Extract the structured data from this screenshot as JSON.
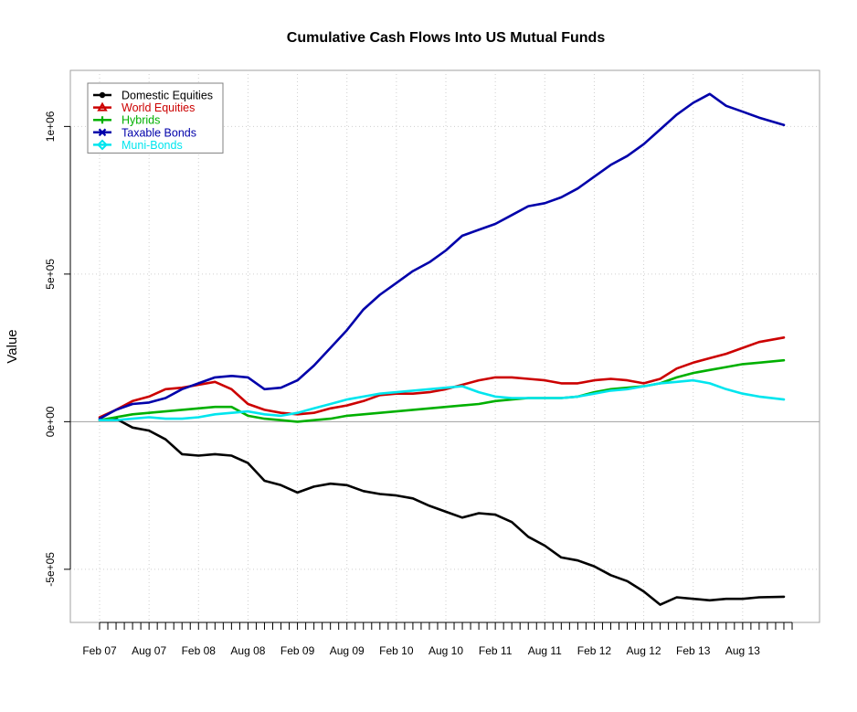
{
  "chart_data": {
    "type": "line",
    "title": "Cumulative Cash Flows Into US Mutual Funds",
    "xlabel": "",
    "ylabel": "Value",
    "x_range": [
      0,
      84
    ],
    "ylim": [
      -680000,
      1190000
    ],
    "grid": true,
    "legend_position": "top-left",
    "x_ticks": [
      {
        "label": "Feb 07",
        "x": 0
      },
      {
        "label": "Aug 07",
        "x": 6
      },
      {
        "label": "Feb 08",
        "x": 12
      },
      {
        "label": "Aug 08",
        "x": 18
      },
      {
        "label": "Feb 09",
        "x": 24
      },
      {
        "label": "Aug 09",
        "x": 30
      },
      {
        "label": "Feb 10",
        "x": 36
      },
      {
        "label": "Aug 10",
        "x": 42
      },
      {
        "label": "Feb 11",
        "x": 48
      },
      {
        "label": "Aug 11",
        "x": 54
      },
      {
        "label": "Feb 12",
        "x": 60
      },
      {
        "label": "Aug 12",
        "x": 66
      },
      {
        "label": "Feb 13",
        "x": 72
      },
      {
        "label": "Aug 13",
        "x": 78
      }
    ],
    "y_ticks": [
      {
        "label": "-5e+05",
        "value": -500000
      },
      {
        "label": "0e+00",
        "value": 0
      },
      {
        "label": "5e+05",
        "value": 500000
      },
      {
        "label": "1e+06",
        "value": 1000000
      }
    ],
    "series": [
      {
        "name": "Domestic Equities",
        "color": "#000000",
        "marker": "circle",
        "points": [
          [
            0,
            5000
          ],
          [
            2,
            10000
          ],
          [
            4,
            -20000
          ],
          [
            6,
            -30000
          ],
          [
            8,
            -60000
          ],
          [
            10,
            -110000
          ],
          [
            12,
            -115000
          ],
          [
            14,
            -110000
          ],
          [
            16,
            -115000
          ],
          [
            18,
            -140000
          ],
          [
            20,
            -200000
          ],
          [
            22,
            -215000
          ],
          [
            24,
            -240000
          ],
          [
            26,
            -220000
          ],
          [
            28,
            -210000
          ],
          [
            30,
            -215000
          ],
          [
            32,
            -235000
          ],
          [
            34,
            -245000
          ],
          [
            36,
            -250000
          ],
          [
            38,
            -260000
          ],
          [
            40,
            -285000
          ],
          [
            42,
            -305000
          ],
          [
            44,
            -325000
          ],
          [
            46,
            -310000
          ],
          [
            48,
            -315000
          ],
          [
            50,
            -340000
          ],
          [
            52,
            -390000
          ],
          [
            54,
            -420000
          ],
          [
            56,
            -460000
          ],
          [
            58,
            -470000
          ],
          [
            60,
            -490000
          ],
          [
            62,
            -520000
          ],
          [
            64,
            -540000
          ],
          [
            66,
            -575000
          ],
          [
            68,
            -620000
          ],
          [
            70,
            -595000
          ],
          [
            72,
            -600000
          ],
          [
            74,
            -605000
          ],
          [
            76,
            -600000
          ],
          [
            78,
            -600000
          ],
          [
            80,
            -595000
          ],
          [
            83,
            -593000
          ]
        ]
      },
      {
        "name": "World Equities",
        "color": "#cc0000",
        "marker": "triangle",
        "points": [
          [
            0,
            15000
          ],
          [
            2,
            40000
          ],
          [
            4,
            70000
          ],
          [
            6,
            85000
          ],
          [
            8,
            110000
          ],
          [
            10,
            115000
          ],
          [
            12,
            125000
          ],
          [
            14,
            135000
          ],
          [
            16,
            110000
          ],
          [
            18,
            60000
          ],
          [
            20,
            40000
          ],
          [
            22,
            30000
          ],
          [
            24,
            25000
          ],
          [
            26,
            30000
          ],
          [
            28,
            45000
          ],
          [
            30,
            55000
          ],
          [
            32,
            70000
          ],
          [
            34,
            90000
          ],
          [
            36,
            95000
          ],
          [
            38,
            95000
          ],
          [
            40,
            100000
          ],
          [
            42,
            110000
          ],
          [
            44,
            125000
          ],
          [
            46,
            140000
          ],
          [
            48,
            150000
          ],
          [
            50,
            150000
          ],
          [
            52,
            145000
          ],
          [
            54,
            140000
          ],
          [
            56,
            130000
          ],
          [
            58,
            130000
          ],
          [
            60,
            140000
          ],
          [
            62,
            145000
          ],
          [
            64,
            140000
          ],
          [
            66,
            130000
          ],
          [
            68,
            145000
          ],
          [
            70,
            180000
          ],
          [
            72,
            200000
          ],
          [
            74,
            215000
          ],
          [
            76,
            230000
          ],
          [
            78,
            250000
          ],
          [
            80,
            270000
          ],
          [
            83,
            285000
          ]
        ]
      },
      {
        "name": "Hybrids",
        "color": "#00b000",
        "marker": "plus",
        "points": [
          [
            0,
            5000
          ],
          [
            2,
            15000
          ],
          [
            4,
            25000
          ],
          [
            6,
            30000
          ],
          [
            8,
            35000
          ],
          [
            10,
            40000
          ],
          [
            12,
            45000
          ],
          [
            14,
            50000
          ],
          [
            16,
            50000
          ],
          [
            18,
            20000
          ],
          [
            20,
            10000
          ],
          [
            22,
            5000
          ],
          [
            24,
            0
          ],
          [
            26,
            5000
          ],
          [
            28,
            10000
          ],
          [
            30,
            20000
          ],
          [
            32,
            25000
          ],
          [
            34,
            30000
          ],
          [
            36,
            35000
          ],
          [
            38,
            40000
          ],
          [
            40,
            45000
          ],
          [
            42,
            50000
          ],
          [
            44,
            55000
          ],
          [
            46,
            60000
          ],
          [
            48,
            70000
          ],
          [
            50,
            75000
          ],
          [
            52,
            80000
          ],
          [
            54,
            80000
          ],
          [
            56,
            80000
          ],
          [
            58,
            85000
          ],
          [
            60,
            100000
          ],
          [
            62,
            110000
          ],
          [
            64,
            115000
          ],
          [
            66,
            120000
          ],
          [
            68,
            130000
          ],
          [
            70,
            150000
          ],
          [
            72,
            165000
          ],
          [
            74,
            175000
          ],
          [
            76,
            185000
          ],
          [
            78,
            195000
          ],
          [
            80,
            200000
          ],
          [
            83,
            208000
          ]
        ]
      },
      {
        "name": "Taxable Bonds",
        "color": "#0000aa",
        "marker": "cross",
        "points": [
          [
            0,
            10000
          ],
          [
            2,
            40000
          ],
          [
            4,
            60000
          ],
          [
            6,
            65000
          ],
          [
            8,
            80000
          ],
          [
            10,
            110000
          ],
          [
            12,
            130000
          ],
          [
            14,
            150000
          ],
          [
            16,
            155000
          ],
          [
            18,
            150000
          ],
          [
            20,
            110000
          ],
          [
            22,
            115000
          ],
          [
            24,
            140000
          ],
          [
            26,
            190000
          ],
          [
            28,
            250000
          ],
          [
            30,
            310000
          ],
          [
            32,
            380000
          ],
          [
            34,
            430000
          ],
          [
            36,
            470000
          ],
          [
            38,
            510000
          ],
          [
            40,
            540000
          ],
          [
            42,
            580000
          ],
          [
            44,
            630000
          ],
          [
            46,
            650000
          ],
          [
            48,
            670000
          ],
          [
            50,
            700000
          ],
          [
            52,
            730000
          ],
          [
            54,
            740000
          ],
          [
            56,
            760000
          ],
          [
            58,
            790000
          ],
          [
            60,
            830000
          ],
          [
            62,
            870000
          ],
          [
            64,
            900000
          ],
          [
            66,
            940000
          ],
          [
            68,
            990000
          ],
          [
            70,
            1040000
          ],
          [
            72,
            1080000
          ],
          [
            74,
            1110000
          ],
          [
            76,
            1070000
          ],
          [
            78,
            1050000
          ],
          [
            80,
            1030000
          ],
          [
            83,
            1005000
          ]
        ]
      },
      {
        "name": "Muni-Bonds",
        "color": "#00e5ee",
        "marker": "diamond",
        "points": [
          [
            0,
            5000
          ],
          [
            2,
            5000
          ],
          [
            4,
            10000
          ],
          [
            6,
            15000
          ],
          [
            8,
            10000
          ],
          [
            10,
            10000
          ],
          [
            12,
            15000
          ],
          [
            14,
            25000
          ],
          [
            16,
            30000
          ],
          [
            18,
            35000
          ],
          [
            20,
            25000
          ],
          [
            22,
            20000
          ],
          [
            24,
            30000
          ],
          [
            26,
            45000
          ],
          [
            28,
            60000
          ],
          [
            30,
            75000
          ],
          [
            32,
            85000
          ],
          [
            34,
            95000
          ],
          [
            36,
            100000
          ],
          [
            38,
            105000
          ],
          [
            40,
            110000
          ],
          [
            42,
            115000
          ],
          [
            44,
            120000
          ],
          [
            46,
            100000
          ],
          [
            48,
            85000
          ],
          [
            50,
            80000
          ],
          [
            52,
            80000
          ],
          [
            54,
            80000
          ],
          [
            56,
            80000
          ],
          [
            58,
            85000
          ],
          [
            60,
            95000
          ],
          [
            62,
            105000
          ],
          [
            64,
            110000
          ],
          [
            66,
            120000
          ],
          [
            68,
            130000
          ],
          [
            70,
            135000
          ],
          [
            72,
            140000
          ],
          [
            74,
            130000
          ],
          [
            76,
            110000
          ],
          [
            78,
            95000
          ],
          [
            80,
            85000
          ],
          [
            83,
            75000
          ]
        ]
      }
    ]
  }
}
